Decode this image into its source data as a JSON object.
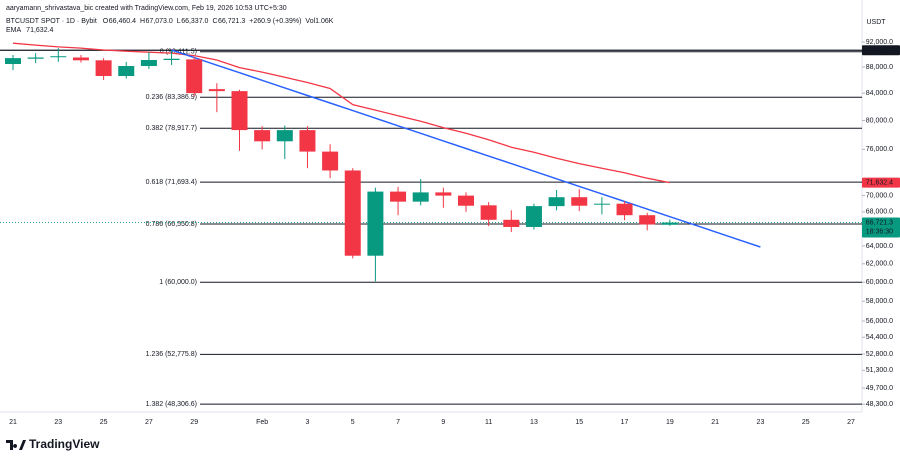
{
  "header": {
    "credit": "aaryamann_shrivastava_bic created with TradingView.com, Feb 19, 2026 10:53 UTC+5:30",
    "symbol": "BTCUSDT SPOT · 1D · Bybit",
    "fields": [
      {
        "key": "O",
        "value": "66,460.4"
      },
      {
        "key": "H",
        "value": "67,073.0"
      },
      {
        "key": "L",
        "value": "66,337.0"
      },
      {
        "key": "C",
        "value": "66,721.3"
      }
    ],
    "change": "+260.9 (+0.39%)",
    "volume": "Vol1.06K",
    "indicator_value": "71,632.4"
  },
  "logo": "TradingView",
  "chart_data": {
    "type": "candlestick",
    "currency": "USDT",
    "log": true,
    "categories": [
      "21",
      null,
      "23",
      null,
      "25",
      null,
      "27",
      null,
      "29",
      null,
      null,
      "Feb",
      null,
      "3",
      null,
      "5",
      null,
      "7",
      null,
      "9",
      null,
      "11",
      null,
      "13",
      null,
      "15",
      null,
      "17",
      null,
      "19",
      null,
      "21",
      null,
      "23",
      null,
      "25",
      null,
      "27"
    ],
    "open": [
      88470,
      89300,
      89600,
      89500,
      89050,
      86600,
      88150,
      89100,
      89200,
      84600,
      84300,
      78650,
      77100,
      78650,
      75700,
      73200,
      62900,
      70500,
      69250,
      70400,
      70000,
      68800,
      67050,
      66200,
      68700,
      69800,
      68900,
      69000,
      67600,
      66460.4,
      null,
      null,
      null,
      null,
      null,
      null,
      null,
      null
    ],
    "high": [
      89900,
      90200,
      91000,
      89900,
      89400,
      88800,
      90400,
      90500,
      89600,
      85500,
      84500,
      79200,
      79300,
      79200,
      76700,
      73500,
      71000,
      71100,
      72100,
      71000,
      70400,
      69200,
      68200,
      69000,
      70700,
      70800,
      69800,
      69300,
      67900,
      67073.0,
      null,
      null,
      null,
      null,
      null,
      null,
      null,
      null
    ],
    "low": [
      87500,
      88600,
      88800,
      88700,
      86000,
      86200,
      87700,
      88300,
      83500,
      81200,
      75800,
      76000,
      74700,
      73500,
      72200,
      62600,
      60100,
      67600,
      68800,
      68500,
      68000,
      66300,
      65600,
      65900,
      68200,
      68100,
      67700,
      67000,
      65800,
      66337.0,
      null,
      null,
      null,
      null,
      null,
      null,
      null,
      null
    ],
    "close": [
      89400,
      89500,
      89700,
      89050,
      86600,
      88150,
      89100,
      89300,
      84000,
      84300,
      78650,
      77100,
      78650,
      75700,
      73200,
      62900,
      70500,
      69250,
      70400,
      70000,
      68750,
      67050,
      66200,
      68700,
      69800,
      68750,
      69000,
      67600,
      66500,
      66721.3,
      null,
      null,
      null,
      null,
      null,
      null,
      null,
      null
    ],
    "up_color": "#089981",
    "down_color": "#f23645",
    "series": [
      {
        "name": "EMA",
        "color": "#f23645",
        "values": [
          91800,
          91500,
          91200,
          91000,
          90700,
          90500,
          90350,
          90200,
          89800,
          89100,
          87900,
          87200,
          86400,
          85600,
          84700,
          82300,
          81500,
          80700,
          79900,
          79000,
          78200,
          77300,
          76300,
          75600,
          74800,
          74100,
          73500,
          72900,
          72200,
          71632.4,
          null,
          null,
          null,
          null,
          null,
          null,
          null,
          null
        ]
      }
    ],
    "trendline": {
      "color": "#2962ff",
      "values": [
        null,
        null,
        null,
        null,
        null,
        null,
        null,
        90700,
        89485,
        88287,
        87105,
        85939,
        84788,
        83653,
        82533,
        81428,
        80338,
        79262,
        78201,
        77154,
        76121,
        75102,
        74096,
        73104,
        72125,
        71159,
        70206,
        69266,
        68339,
        67424,
        66521,
        65630,
        64751,
        63884,
        null,
        null,
        null,
        null
      ]
    },
    "fib_levels": [
      {
        "price": 90411.5,
        "label": "0 (90,411.5)"
      },
      {
        "price": 83386.9,
        "label": "0.236 (83,386.9)"
      },
      {
        "price": 78917.7,
        "label": "0.382 (78,917.7)"
      },
      {
        "price": 71693.4,
        "label": "0.618 (71,693.4)"
      },
      {
        "price": 66550.8,
        "label": "0.786 (66,550.8)"
      },
      {
        "price": 60000.0,
        "label": "1 (60,000.0)"
      },
      {
        "price": 52775.8,
        "label": "1.236 (52,775.8)"
      },
      {
        "price": 48306.6,
        "label": "1.382 (48,306.6)"
      }
    ],
    "price_labels": [
      {
        "value": 90653.2,
        "label": "90,653.2",
        "color": "#131722"
      },
      {
        "value": 71632.4,
        "label": "71,632.4",
        "color": "#f23645"
      },
      {
        "value": 66721.3,
        "label": "66,721.3",
        "color": "#089981",
        "countdown": "18:36:30"
      }
    ],
    "ylim": [
      47630,
      93985
    ],
    "yticks": [
      {
        "value": 92000,
        "label": "92,000.0"
      },
      {
        "value": 88000,
        "label": "88,000.0"
      },
      {
        "value": 84000,
        "label": "84,000.0"
      },
      {
        "value": 80000,
        "label": "80,000.0"
      },
      {
        "value": 76000,
        "label": "76,000.0"
      },
      {
        "value": 70000,
        "label": "70,000.0"
      },
      {
        "value": 68000,
        "label": "68,000.0"
      },
      {
        "value": 64000,
        "label": "64,000.0"
      },
      {
        "value": 62000,
        "label": "62,000.0"
      },
      {
        "value": 60000,
        "label": "60,000.0"
      },
      {
        "value": 58000,
        "label": "58,000.0"
      },
      {
        "value": 56000,
        "label": "56,000.0"
      },
      {
        "value": 54400,
        "label": "54,400.0"
      },
      {
        "value": 52800,
        "label": "52,800.0"
      },
      {
        "value": 51300,
        "label": "51,300.0"
      },
      {
        "value": 49700,
        "label": "49,700.0"
      },
      {
        "value": 48300,
        "label": "48,300.0"
      }
    ]
  }
}
